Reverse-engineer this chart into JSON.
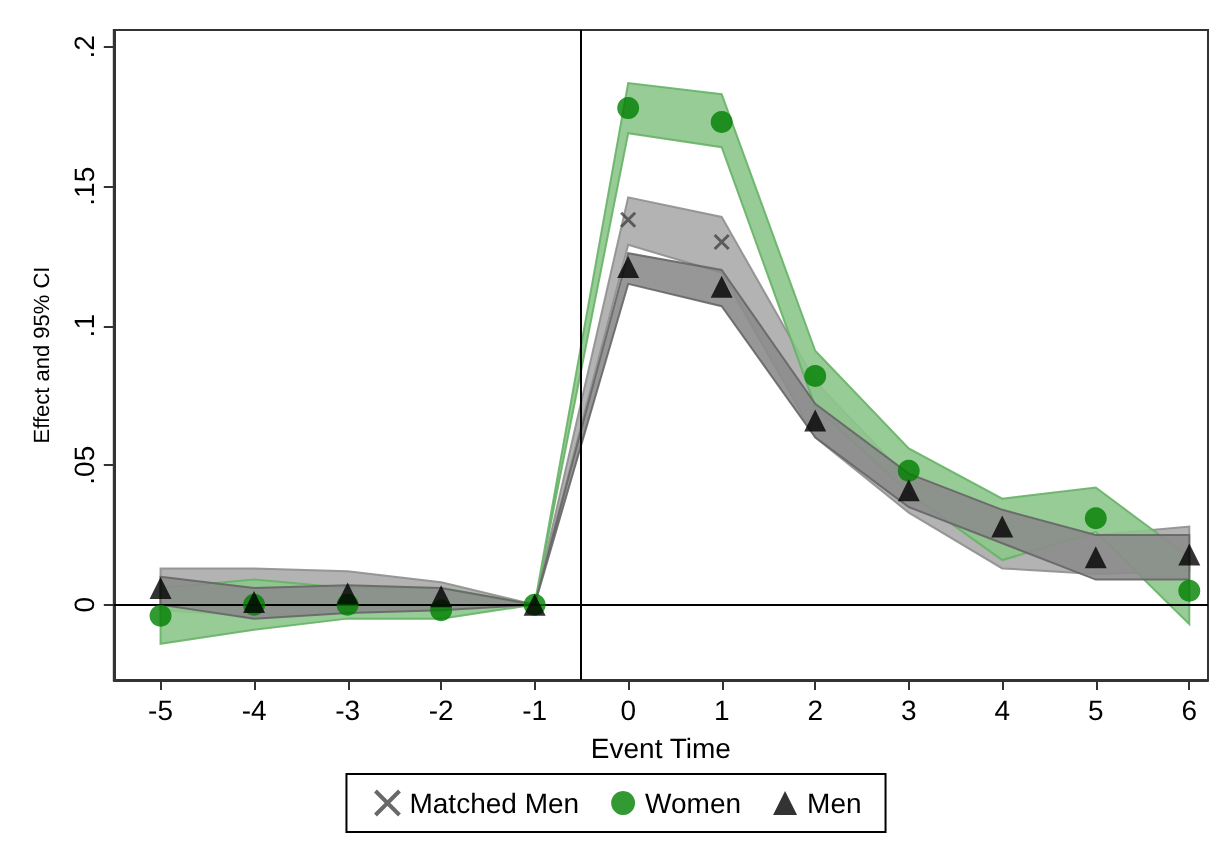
{
  "chart_data": {
    "type": "scatter",
    "xlabel": "Event Time",
    "ylabel": "Effect and 95% CI",
    "x": [
      -5,
      -4,
      -3,
      -2,
      -1,
      0,
      1,
      2,
      3,
      4,
      5,
      6
    ],
    "series": [
      {
        "name": "Matched Men",
        "color": "#444444",
        "marker": "cross",
        "values": [
          null,
          null,
          null,
          null,
          null,
          0.138,
          0.13,
          null,
          null,
          null,
          null,
          null
        ],
        "lower": [
          -0.002,
          -0.004,
          -0.002,
          -0.001,
          0,
          0.129,
          0.119,
          0.06,
          0.033,
          0.013,
          0.011,
          0.012
        ],
        "upper": [
          0.013,
          0.013,
          0.012,
          0.008,
          0,
          0.146,
          0.139,
          0.08,
          0.045,
          0.03,
          0.025,
          0.028
        ]
      },
      {
        "name": "Women",
        "color": "#008000",
        "marker": "circle",
        "values": [
          -0.004,
          0.0,
          0.0,
          -0.002,
          0,
          0.178,
          0.173,
          0.082,
          0.048,
          null,
          0.031,
          0.005
        ],
        "lower": [
          -0.014,
          -0.009,
          -0.005,
          -0.005,
          0,
          0.169,
          0.164,
          0.071,
          0.04,
          0.016,
          0.026,
          -0.007
        ],
        "upper": [
          0.006,
          0.009,
          0.006,
          0.006,
          0,
          0.187,
          0.183,
          0.091,
          0.056,
          0.038,
          0.042,
          0.017
        ]
      },
      {
        "name": "Men",
        "color": "#000000",
        "marker": "triangle",
        "values": [
          0.006,
          0.001,
          0.004,
          0.003,
          0,
          0.121,
          0.114,
          0.066,
          0.041,
          0.028,
          0.017,
          0.018
        ],
        "lower": [
          0.0,
          -0.005,
          -0.003,
          -0.002,
          0,
          0.115,
          0.107,
          0.06,
          0.035,
          0.022,
          0.009,
          0.009
        ],
        "upper": [
          0.01,
          0.006,
          0.007,
          0.006,
          0,
          0.126,
          0.12,
          0.072,
          0.047,
          0.034,
          0.025,
          0.025
        ]
      }
    ],
    "xlim": [
      -5.5,
      6.2
    ],
    "ylim": [
      -0.027,
      0.206
    ],
    "xticks": [
      -5,
      -4,
      -3,
      -2,
      -1,
      0,
      1,
      2,
      3,
      4,
      5,
      6
    ],
    "yticks": [
      0,
      {
        "value": 0.05,
        "label": ".05"
      },
      {
        "value": 0.1,
        "label": ".1"
      },
      {
        "value": 0.15,
        "label": ".15"
      },
      {
        "value": 0.2,
        "label": ".2"
      }
    ],
    "ref_lines": [
      {
        "axis": "y",
        "value": 0
      },
      {
        "axis": "x",
        "value": -0.5
      }
    ],
    "grid": false,
    "legend": "bottom"
  }
}
